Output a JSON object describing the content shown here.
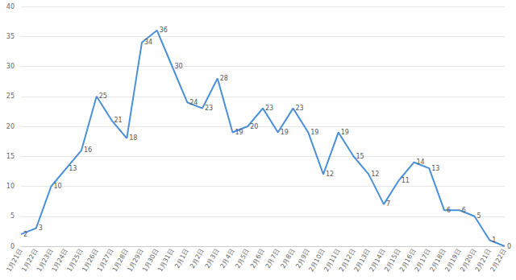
{
  "chart_data": {
    "type": "line",
    "categories": [
      "1月21日",
      "1月22日",
      "1月23日",
      "1月24日",
      "1月25日",
      "1月26日",
      "1月27日",
      "1月28日",
      "1月29日",
      "1月30日",
      "1月31日",
      "2月1日",
      "2月2日",
      "2月3日",
      "2月4日",
      "2月5日",
      "2月6日",
      "2月7日",
      "2月8日",
      "2月9日",
      "2月10日",
      "2月11日",
      "2月12日",
      "2月13日",
      "2月14日",
      "2月15日",
      "2月16日",
      "2月17日",
      "2月18日",
      "2月19日",
      "2月20日",
      "2月21日",
      "2月22日"
    ],
    "values": [
      2,
      3,
      10,
      13,
      16,
      25,
      21,
      18,
      34,
      36,
      30,
      24,
      23,
      28,
      19,
      20,
      23,
      19,
      23,
      19,
      12,
      19,
      15,
      12,
      7,
      11,
      14,
      13,
      6,
      6,
      5,
      1,
      0
    ],
    "color": "#4a90d9",
    "ylim": [
      0,
      40
    ],
    "yticks": [
      0,
      5,
      10,
      15,
      20,
      25,
      30,
      35,
      40
    ],
    "grid": true,
    "data_labels": true
  }
}
